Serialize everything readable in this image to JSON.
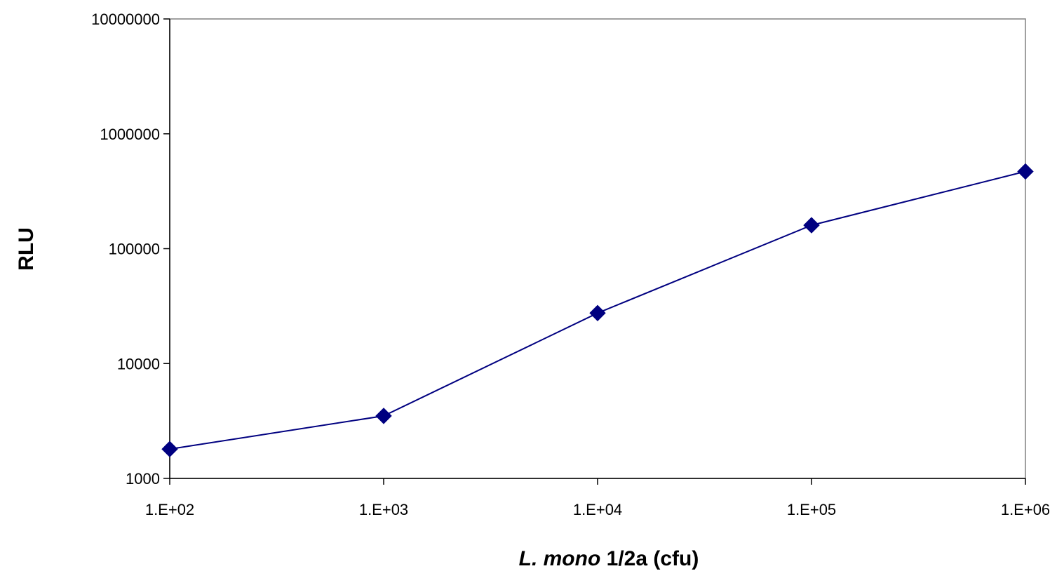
{
  "chart_data": {
    "type": "line",
    "x_scale": "log",
    "y_scale": "log",
    "x": [
      100,
      1000,
      10000,
      100000,
      1000000
    ],
    "series": [
      {
        "values": [
          1800,
          3500,
          27500,
          160000,
          470000
        ],
        "color": "#000080"
      }
    ],
    "x_ticks": [
      {
        "value": 100,
        "label": "1.E+02"
      },
      {
        "value": 1000,
        "label": "1.E+03"
      },
      {
        "value": 10000,
        "label": "1.E+04"
      },
      {
        "value": 100000,
        "label": "1.E+05"
      },
      {
        "value": 1000000,
        "label": "1.E+06"
      }
    ],
    "y_ticks": [
      {
        "value": 1000,
        "label": "1000"
      },
      {
        "value": 10000,
        "label": "10000"
      },
      {
        "value": 100000,
        "label": "100000"
      },
      {
        "value": 1000000,
        "label": "1000000"
      },
      {
        "value": 10000000,
        "label": "10000000"
      }
    ],
    "xlim": [
      100,
      1000000
    ],
    "ylim": [
      1000,
      10000000
    ],
    "xlabel_italic": "L. mono",
    "xlabel_rest": " 1/2a (cfu)",
    "ylabel": "RLU",
    "grid": false,
    "marker": "diamond",
    "frame_color": "#808080"
  }
}
